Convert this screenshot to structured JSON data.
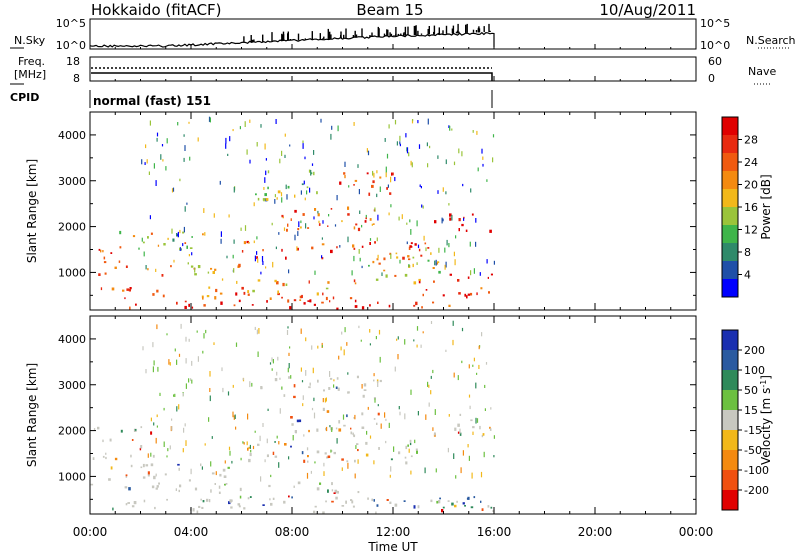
{
  "header": {
    "station": "Hokkaido (fitACF)",
    "beam": "Beam 15",
    "date": "10/Aug/2011"
  },
  "strips": {
    "nsky": {
      "label": "N.Sky",
      "ticks_left": [
        "10^5",
        "10^0"
      ],
      "ticks_right": [
        "10^5",
        "10^0"
      ],
      "right_label": "N.Search"
    },
    "freq": {
      "label_line1": "Freq.",
      "label_line2": "[MHz]",
      "ticks_left": [
        "18",
        "8"
      ],
      "ticks_right": [
        "60",
        "0"
      ],
      "right_label": "Nave"
    },
    "cpid": {
      "label": "CPID",
      "text": "normal (fast) 151"
    }
  },
  "chart_data": [
    {
      "type": "heatmap",
      "name": "power",
      "ylabel": "Slant Range [km]",
      "xlabel": "",
      "yticks": [
        "1000",
        "2000",
        "3000",
        "4000"
      ],
      "ylim": [
        180,
        4500
      ],
      "xlim": [
        0,
        24
      ],
      "data_end_hour": 16,
      "colorbar": {
        "label": "Power [dB]",
        "ticks": [
          "4",
          "8",
          "12",
          "16",
          "20",
          "24",
          "28"
        ],
        "range": [
          0,
          32
        ],
        "colors": [
          "#0000ff",
          "#1f4fa8",
          "#2f8a6a",
          "#3fb54a",
          "#9ac43a",
          "#f2b81a",
          "#f48a10",
          "#f05a10",
          "#e82a10",
          "#e00000"
        ]
      },
      "bands": [
        {
          "x0": 0.0,
          "x1": 16.0,
          "y0": 230,
          "y1": 420,
          "level": 0.9
        },
        {
          "x0": 0.0,
          "x1": 5.0,
          "y0": 420,
          "y1": 700,
          "level": 0.78
        },
        {
          "x0": 0.3,
          "x1": 6.0,
          "y0": 950,
          "y1": 1250,
          "level": 0.62
        },
        {
          "x0": 1.0,
          "x1": 4.5,
          "y0": 1500,
          "y1": 1950,
          "level": 0.5
        },
        {
          "x0": 5.0,
          "x1": 10.5,
          "y0": 400,
          "y1": 900,
          "level": 0.7
        },
        {
          "x0": 6.0,
          "x1": 13.5,
          "y0": 1300,
          "y1": 1700,
          "level": 0.82
        },
        {
          "x0": 7.5,
          "x1": 11.5,
          "y0": 1900,
          "y1": 2500,
          "level": 0.75
        },
        {
          "x0": 9.5,
          "x1": 12.0,
          "y0": 2700,
          "y1": 3200,
          "level": 0.85
        },
        {
          "x0": 11.0,
          "x1": 14.0,
          "y0": 800,
          "y1": 1500,
          "level": 0.55
        },
        {
          "x0": 13.5,
          "x1": 16.0,
          "y0": 1900,
          "y1": 2300,
          "level": 0.95
        },
        {
          "x0": 13.0,
          "x1": 16.0,
          "y0": 500,
          "y1": 1000,
          "level": 0.9
        },
        {
          "x0": 6.5,
          "x1": 9.0,
          "y0": 2600,
          "y1": 3300,
          "level": 0.35
        },
        {
          "x0": 0.0,
          "x1": 1.2,
          "y0": 1200,
          "y1": 1700,
          "level": 0.7
        }
      ]
    },
    {
      "type": "heatmap",
      "name": "velocity",
      "ylabel": "Slant Range [km]",
      "xlabel": "Time UT",
      "xticks": [
        "00:00",
        "04:00",
        "08:00",
        "12:00",
        "16:00",
        "20:00",
        "00:00"
      ],
      "yticks": [
        "1000",
        "2000",
        "3000",
        "4000"
      ],
      "ylim": [
        180,
        4500
      ],
      "xlim": [
        0,
        24
      ],
      "data_end_hour": 16,
      "colorbar": {
        "label": "Velocity [m s-1]",
        "label_unit": "m s",
        "label_exp": "-1",
        "ticks": [
          "200",
          "100",
          "50",
          "15",
          "-15",
          "-50",
          "-100",
          "-200"
        ],
        "colors": [
          "#1a2fb0",
          "#2a5aa0",
          "#2f8a5a",
          "#6cc040",
          "#c8c8c0",
          "#f2b81a",
          "#f48a10",
          "#f05010",
          "#e00000"
        ]
      },
      "bands": [
        {
          "x0": 0.0,
          "x1": 16.0,
          "y0": 230,
          "y1": 520,
          "level": 0.52
        },
        {
          "x0": 0.0,
          "x1": 5.5,
          "y0": 700,
          "y1": 1300,
          "level": 0.5
        },
        {
          "x0": 5.0,
          "x1": 11.0,
          "y0": 450,
          "y1": 900,
          "level": 0.5
        },
        {
          "x0": 6.0,
          "x1": 13.5,
          "y0": 1300,
          "y1": 1800,
          "level": 0.5
        },
        {
          "x0": 7.5,
          "x1": 11.5,
          "y0": 1900,
          "y1": 2500,
          "level": 0.5
        },
        {
          "x0": 6.5,
          "x1": 11.5,
          "y0": 2700,
          "y1": 3200,
          "level": 0.5
        },
        {
          "x0": 13.5,
          "x1": 16.0,
          "y0": 1900,
          "y1": 2400,
          "level": 0.5
        },
        {
          "x0": 13.5,
          "x1": 16.0,
          "y0": 280,
          "y1": 700,
          "level": 0.78
        },
        {
          "x0": 0.0,
          "x1": 2.5,
          "y0": 1400,
          "y1": 2100,
          "level": 0.5
        }
      ]
    }
  ]
}
